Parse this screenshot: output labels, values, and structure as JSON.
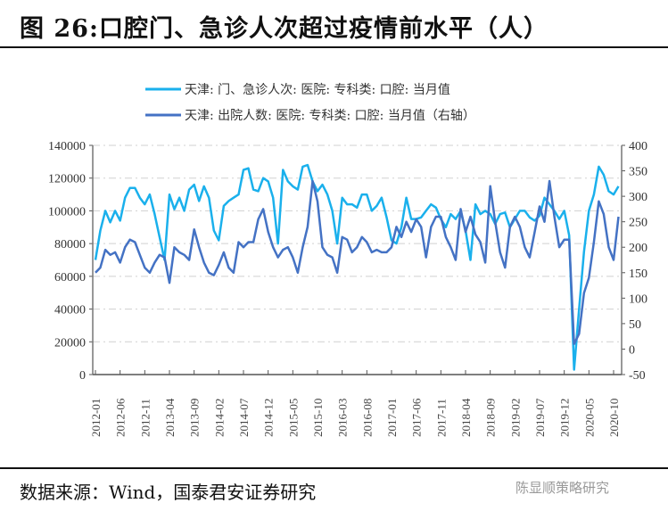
{
  "title": "图 26:口腔门、急诊人次超过疫情前水平（人）",
  "source": "数据来源：Wind，国泰君安证券研究",
  "watermark": "陈显顺策略研究",
  "chart_data": {
    "type": "line",
    "xlabels": [
      "2012-01",
      "2012-06",
      "2012-11",
      "2013-04",
      "2013-09",
      "2014-02",
      "2014-07",
      "2014-12",
      "2015-05",
      "2015-10",
      "2016-03",
      "2016-08",
      "2017-01",
      "2017-06",
      "2017-11",
      "2018-04",
      "2018-09",
      "2019-02",
      "2019-07",
      "2019-12",
      "2020-05",
      "2020-10"
    ],
    "x_start": "2012-01",
    "x_end": "2020-11",
    "yleft": {
      "min": 0,
      "max": 140000,
      "ticks": [
        "0",
        "20000",
        "40000",
        "60000",
        "80000",
        "100000",
        "120000",
        "140000"
      ]
    },
    "yright": {
      "min": -50,
      "max": 400,
      "ticks": [
        "-50",
        "0",
        "50",
        "100",
        "150",
        "200",
        "250",
        "300",
        "350",
        "400"
      ]
    },
    "series": [
      {
        "name": "天津: 门、急诊人次: 医院: 专科类: 口腔: 当月值",
        "axis": "left",
        "color": "#1ab0ec",
        "values_thousands": [
          70,
          88,
          100,
          93,
          100,
          94,
          108,
          114,
          114,
          108,
          104,
          110,
          98,
          84,
          70,
          110,
          101,
          108,
          100,
          113,
          116,
          106,
          115,
          108,
          88,
          82,
          103,
          106,
          108,
          110,
          125,
          126,
          113,
          112,
          120,
          118,
          108,
          80,
          125,
          118,
          115,
          113,
          127,
          128,
          118,
          112,
          116,
          110,
          100,
          80,
          108,
          104,
          104,
          102,
          110,
          110,
          100,
          103,
          108,
          96,
          82,
          80,
          90,
          108,
          95,
          95,
          96,
          100,
          104,
          102,
          95,
          90,
          98,
          95,
          100,
          88,
          70,
          104,
          98,
          100,
          98,
          92,
          98,
          99,
          90,
          95,
          100,
          100,
          96,
          94,
          97,
          108,
          104,
          100,
          95,
          100,
          85,
          3,
          40,
          75,
          100,
          110,
          127,
          122,
          112,
          110,
          115
        ]
      },
      {
        "name": "天津: 出院人数: 医院: 专科类: 口腔: 当月值（右轴）",
        "axis": "right",
        "color": "#4472c4",
        "values": [
          150,
          160,
          195,
          185,
          190,
          170,
          200,
          215,
          210,
          185,
          160,
          150,
          170,
          185,
          180,
          130,
          200,
          190,
          185,
          175,
          235,
          200,
          170,
          150,
          145,
          165,
          190,
          160,
          150,
          210,
          200,
          210,
          210,
          255,
          275,
          230,
          200,
          180,
          195,
          200,
          180,
          150,
          200,
          240,
          330,
          290,
          200,
          185,
          180,
          150,
          220,
          215,
          190,
          200,
          220,
          210,
          190,
          195,
          190,
          190,
          200,
          240,
          220,
          250,
          230,
          255,
          240,
          180,
          240,
          260,
          260,
          220,
          200,
          175,
          275,
          230,
          260,
          225,
          210,
          170,
          320,
          250,
          190,
          160,
          240,
          260,
          240,
          200,
          180,
          230,
          280,
          250,
          330,
          260,
          200,
          215,
          215,
          10,
          30,
          110,
          140,
          210,
          290,
          265,
          200,
          175,
          260
        ]
      }
    ],
    "legend": "top-center"
  }
}
